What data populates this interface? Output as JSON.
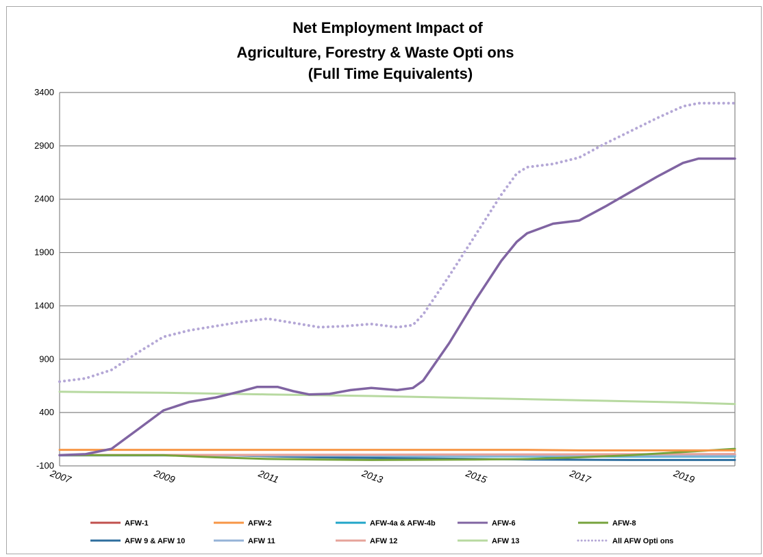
{
  "chart_data": {
    "type": "line",
    "title_lines": [
      "Net Employment Impact of",
      "Agriculture, Forestry & Waste Opti   ons",
      "(Full Time Equivalents)"
    ],
    "xlabel": "",
    "ylabel": "",
    "xlim": [
      2007,
      2020
    ],
    "ylim": [
      -100,
      3400
    ],
    "y_ticks": [
      "3400",
      "2900",
      "2400",
      "1900",
      "1400",
      "900",
      "400",
      "-100"
    ],
    "y_tick_values": [
      3400,
      2900,
      2400,
      1900,
      1400,
      900,
      400,
      -100
    ],
    "x_ticks": [
      "2007",
      "2009",
      "2011",
      "2013",
      "2015",
      "2017",
      "2019"
    ],
    "x_tick_values": [
      2007,
      2009,
      2011,
      2013,
      2015,
      2017,
      2019
    ],
    "grid": true,
    "legend_position": "bottom",
    "series": [
      {
        "name": "AFW-1",
        "color": "#c0504d",
        "dash": "solid",
        "x": [
          2007,
          2010,
          2013,
          2016,
          2020
        ],
        "y": [
          2,
          2,
          2,
          2,
          2
        ]
      },
      {
        "name": "AFW-2",
        "color": "#f79646",
        "dash": "solid",
        "x": [
          2007,
          2010,
          2013,
          2016,
          2017,
          2020
        ],
        "y": [
          50,
          50,
          50,
          50,
          45,
          45
        ]
      },
      {
        "name": "AFW-4a & AFW-4b",
        "color": "#21a6c8",
        "dash": "solid",
        "x": [
          2007,
          2009,
          2011,
          2012,
          2014,
          2016,
          2018,
          2020
        ],
        "y": [
          0,
          2,
          0,
          -5,
          -8,
          -10,
          -12,
          -12
        ]
      },
      {
        "name": "AFW-6",
        "color": "#8064a2",
        "dash": "solid",
        "x": [
          2007,
          2007.5,
          2008,
          2008.5,
          2009,
          2009.5,
          2010,
          2010.5,
          2010.8,
          2011.2,
          2011.5,
          2011.8,
          2012.2,
          2012.6,
          2013,
          2013.5,
          2013.8,
          2014,
          2014.5,
          2015,
          2015.5,
          2015.8,
          2016,
          2016.5,
          2017,
          2017.5,
          2018,
          2018.5,
          2019,
          2019.3,
          2020
        ],
        "y": [
          0,
          10,
          60,
          240,
          420,
          500,
          540,
          600,
          640,
          640,
          600,
          570,
          575,
          610,
          630,
          610,
          630,
          700,
          1050,
          1450,
          1820,
          2000,
          2080,
          2170,
          2200,
          2330,
          2470,
          2610,
          2740,
          2780,
          2780
        ]
      },
      {
        "name": "AFW-8",
        "color": "#77a33c",
        "dash": "solid",
        "x": [
          2007,
          2009,
          2010,
          2011,
          2012,
          2013,
          2015,
          2016,
          2017,
          2018,
          2019,
          2020
        ],
        "y": [
          0,
          0,
          -20,
          -35,
          -40,
          -45,
          -40,
          -35,
          -20,
          0,
          30,
          60
        ]
      },
      {
        "name": "AFW 9 & AFW 10",
        "color": "#2e6e9e",
        "dash": "solid",
        "x": [
          2007,
          2010,
          2012,
          2014,
          2016,
          2018,
          2020
        ],
        "y": [
          2,
          0,
          -20,
          -30,
          -40,
          -45,
          -45
        ]
      },
      {
        "name": "AFW 11",
        "color": "#95b3d7",
        "dash": "solid",
        "x": [
          2007,
          2010,
          2013,
          2016,
          2020
        ],
        "y": [
          -3,
          -3,
          -5,
          -5,
          -5
        ]
      },
      {
        "name": "AFW 12",
        "color": "#e6a39a",
        "dash": "solid",
        "x": [
          2007,
          2010,
          2013,
          2016,
          2018,
          2020
        ],
        "y": [
          3,
          3,
          5,
          8,
          10,
          12
        ]
      },
      {
        "name": "AFW 13",
        "color": "#b7d9a0",
        "dash": "solid",
        "x": [
          2007,
          2009,
          2011,
          2013,
          2015,
          2017,
          2019,
          2020
        ],
        "y": [
          595,
          585,
          570,
          555,
          535,
          515,
          495,
          480
        ]
      },
      {
        "name": "All AFW Opti   ons",
        "color": "#b4a7d6",
        "dash": "dotted",
        "x": [
          2007,
          2007.5,
          2008,
          2008.5,
          2009,
          2009.5,
          2010,
          2010.5,
          2011,
          2011.5,
          2012,
          2012.5,
          2013,
          2013.5,
          2013.8,
          2014,
          2014.5,
          2015,
          2015.5,
          2015.8,
          2016,
          2016.5,
          2017,
          2017.5,
          2018,
          2018.5,
          2019,
          2019.3,
          2020
        ],
        "y": [
          690,
          720,
          800,
          960,
          1110,
          1170,
          1210,
          1250,
          1280,
          1240,
          1200,
          1210,
          1230,
          1200,
          1220,
          1320,
          1680,
          2060,
          2440,
          2640,
          2700,
          2730,
          2790,
          2920,
          3040,
          3160,
          3270,
          3300,
          3300
        ]
      }
    ]
  }
}
